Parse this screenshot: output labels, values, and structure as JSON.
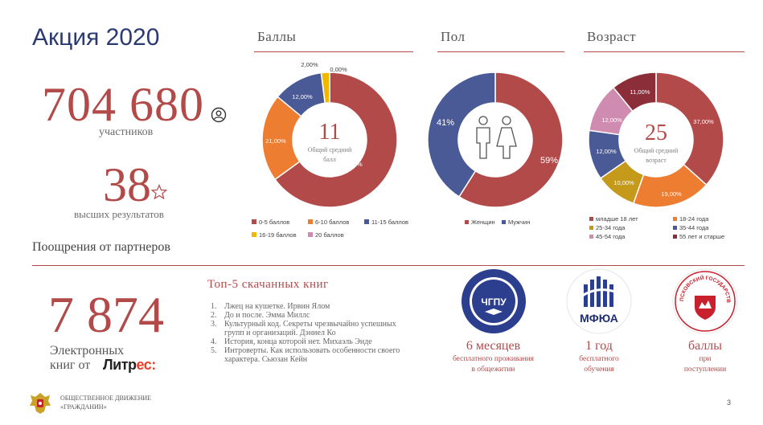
{
  "page": {
    "title": "Акция 2020",
    "participants_value": "704 680",
    "participants_label": "участников",
    "top_results_value": "38",
    "top_results_label": "высших результатов",
    "rewards_heading": "Поощрения от партнеров",
    "page_number": "3"
  },
  "books": {
    "value": "7 874",
    "label_line1": "Электронных",
    "label_line2": "книг от",
    "logo_part1": "Литр",
    "logo_part2": "ес:",
    "top_heading": "Топ-5 скачанных книг",
    "top_list": [
      {
        "n": "1.",
        "text": "Лжец на кушетке. Ирвин Ялом"
      },
      {
        "n": "2.",
        "text": "До и после. Эмма Миллс"
      },
      {
        "n": "3.",
        "text": "Культурный код. Секреты чрезвычайно успешных групп и организаций. Дэниел Ко"
      },
      {
        "n": "4.",
        "text": "История, конца которой нет. Михаэль Энде"
      },
      {
        "n": "5.",
        "text": "Интроверты. Как использовать особенности своего характера. Сьюзан Кейн"
      }
    ]
  },
  "partners": [
    {
      "logo_text": "ЧГПУ",
      "value": "6 месяцев",
      "desc1": "бесплатного проживания",
      "desc2": "в общежитии"
    },
    {
      "logo_text": "МФЮА",
      "value": "1 год",
      "desc1": "бесплатного",
      "desc2": "обучения"
    },
    {
      "logo_text": "ПСКОВСКИЙ ГОСУДАРСТВЕННЫЙ УНИВЕРСИТЕТ",
      "value": "баллы",
      "desc1": "при",
      "desc2": "поступлении"
    }
  ],
  "footer": {
    "org_line1": "ОБЩЕСТВЕННОЕ ДВИЖЕНИЕ",
    "org_line2": "«ГРАЖДАНИН»"
  },
  "chart_data": [
    {
      "type": "pie",
      "title": "Баллы",
      "center_value": "11",
      "center_label_line1": "Общий средний",
      "center_label_line2": "балл",
      "categories": [
        "0-5 баллов",
        "6-10 баллов",
        "11-15 баллов",
        "16-19 баллов",
        "20 баллов"
      ],
      "values": [
        65,
        21,
        12,
        2,
        0
      ],
      "value_labels": [
        "65,00%",
        "21,00%",
        "12,00%",
        "2,00%",
        "0,00%"
      ],
      "colors": [
        "#b24a4a",
        "#ed7d31",
        "#4a5a96",
        "#f2b800",
        "#d08bb0"
      ]
    },
    {
      "type": "pie",
      "title": "Пол",
      "categories": [
        "Женщин",
        "Мужчин"
      ],
      "values": [
        59,
        41
      ],
      "value_labels": [
        "59%",
        "41%"
      ],
      "colors": [
        "#b24a4a",
        "#4a5a96"
      ]
    },
    {
      "type": "pie",
      "title": "Возраст",
      "center_value": "25",
      "center_label_line1": "Общий средний",
      "center_label_line2": "возраст",
      "categories": [
        "младше 18 лет",
        "18-24 года",
        "25-34 года",
        "35-44 года",
        "45-54 года",
        "55 лет и старше"
      ],
      "values": [
        37,
        19,
        10,
        12,
        12,
        11
      ],
      "value_labels": [
        "37,00%",
        "19,00%",
        "10,00%",
        "12,00%",
        "12,00%",
        "11,00%"
      ],
      "colors": [
        "#b24a4a",
        "#ed7d31",
        "#c59a1a",
        "#4a5a96",
        "#d08bb0",
        "#8b2e3a"
      ]
    }
  ]
}
